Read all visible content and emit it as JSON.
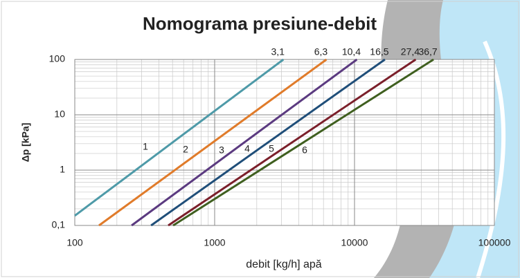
{
  "chart_data": {
    "type": "line",
    "title": "Nomograma presiune-debit",
    "x_label": "debit [kg/h] apă",
    "y_label": "Δp [kPa]",
    "log_x": true,
    "log_y": true,
    "grid": true,
    "xlim": [
      100,
      100000
    ],
    "xticks": [
      100,
      1000,
      10000,
      100000
    ],
    "ylim": [
      0.1,
      100
    ],
    "yticks": [
      {
        "value": 0.1,
        "label": "0,1"
      },
      1,
      10,
      100
    ],
    "series": [
      {
        "name": "3,1",
        "label": "1",
        "color": "#4e9aa8",
        "x": [
          100,
          3100
        ],
        "values": [
          0.15,
          100
        ]
      },
      {
        "name": "6,3",
        "label": "2",
        "color": "#e07b2a",
        "x": [
          149,
          6300
        ],
        "values": [
          0.1,
          100
        ]
      },
      {
        "name": "10,4",
        "label": "3",
        "color": "#5b3a80",
        "x": [
          255,
          10400
        ],
        "values": [
          0.1,
          100
        ]
      },
      {
        "name": "16,5",
        "label": "4",
        "color": "#1f4e79",
        "x": [
          351,
          16500
        ],
        "values": [
          0.1,
          100
        ]
      },
      {
        "name": "27,4",
        "label": "5",
        "color": "#7b1f2a",
        "x": [
          466,
          27400
        ],
        "values": [
          0.1,
          100
        ]
      },
      {
        "name": "36,7",
        "label": "6",
        "color": "#3f5f1f",
        "x": [
          505,
          36700
        ],
        "values": [
          0.1,
          100
        ]
      }
    ]
  }
}
